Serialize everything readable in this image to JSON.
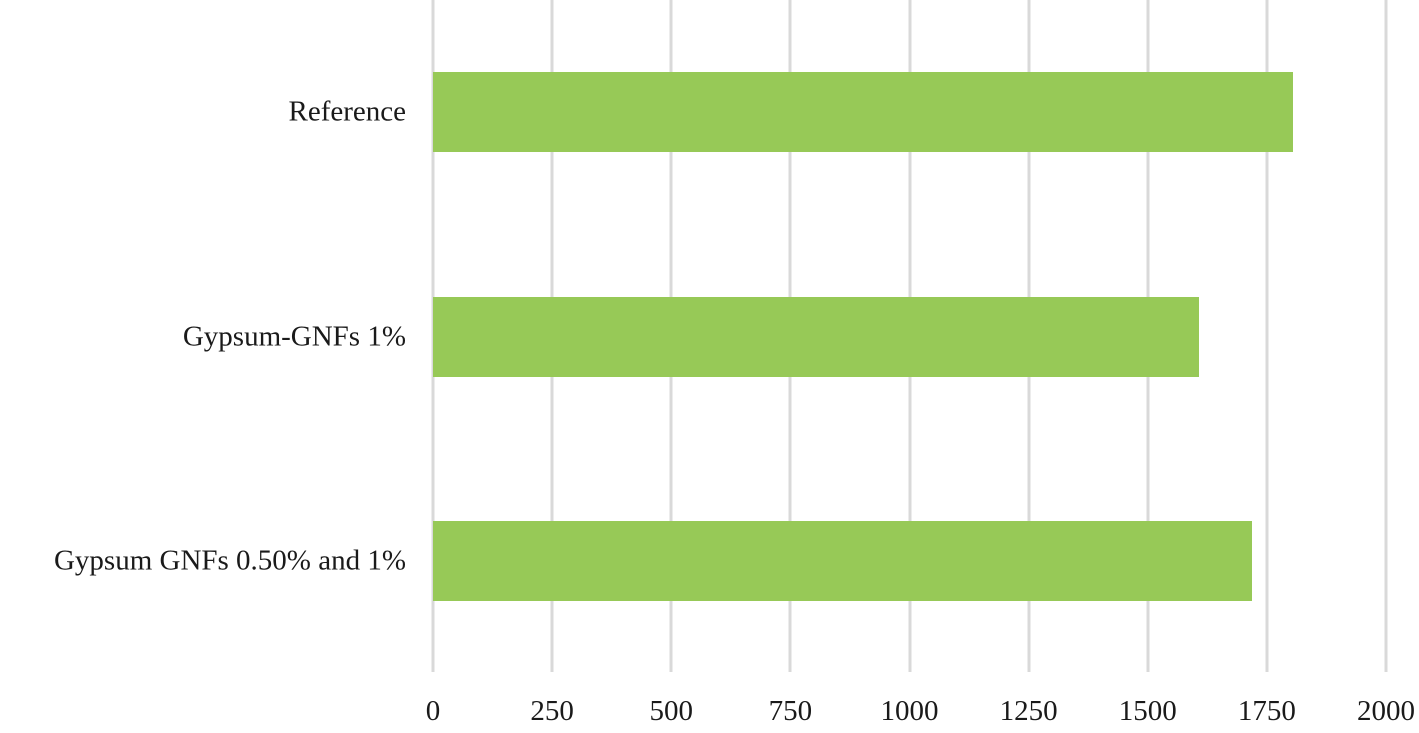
{
  "chart_data": {
    "type": "bar",
    "orientation": "horizontal",
    "title": "",
    "xlabel": "",
    "ylabel": "",
    "categories": [
      "Reference",
      "Gypsum-GNFs 1%",
      "Gypsum GNFs 0.50% and 1%"
    ],
    "values": [
      1805,
      1607,
      1719
    ],
    "xlim": [
      0,
      2000
    ],
    "xticks": [
      "0",
      "250",
      "500",
      "750",
      "1000",
      "1250",
      "1500",
      "1750",
      "2000"
    ],
    "grid": "vertical",
    "legend": null,
    "bar_color": "#97c957"
  },
  "axis": {
    "ticks": [
      "0",
      "250",
      "500",
      "750",
      "1000",
      "1250",
      "1500",
      "1750",
      "2000"
    ]
  },
  "bars": [
    {
      "label": "Reference",
      "value": 1805
    },
    {
      "label": "Gypsum-GNFs 1%",
      "value": 1607
    },
    {
      "label": "Gypsum GNFs 0.50% and 1%",
      "value": 1719
    }
  ],
  "colors": {
    "bar": "#97c957",
    "grid": "#d9d9d9"
  }
}
